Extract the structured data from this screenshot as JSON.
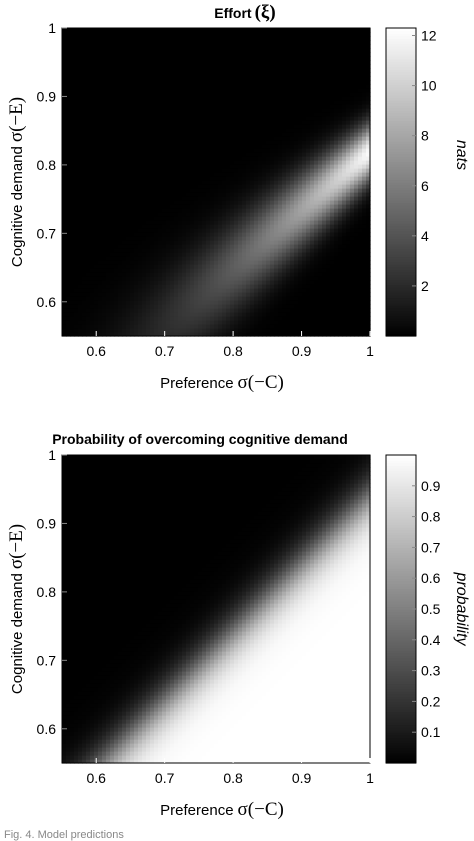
{
  "chart_data": [
    {
      "type": "heatmap",
      "title": "Effort (ξ)",
      "title_parts": {
        "word": "Effort",
        "symbol": "(ξ)"
      },
      "xlabel": {
        "text": "Preference",
        "math": "σ(−C)"
      },
      "ylabel": {
        "text": "Cognitive demand",
        "math": "σ(−E)"
      },
      "xlim": [
        0.55,
        1.0
      ],
      "ylim": [
        0.55,
        1.0
      ],
      "xticks": [
        "0.6",
        "0.7",
        "0.8",
        "0.9",
        "1"
      ],
      "yticks": [
        "0.6",
        "0.7",
        "0.8",
        "0.9",
        "1"
      ],
      "colorbar": {
        "label": "nats",
        "range": [
          0.0,
          12.3
        ],
        "ticks": [
          "2",
          "4",
          "6",
          "8",
          "10",
          "12"
        ],
        "colormap": "gray"
      },
      "pattern": "bright where Cognitive demand is close to Preference and both are high, peak about 12 nats near Preference 1 / Cognitive demand 0.82, black where Cognitive demand is well above Preference"
    },
    {
      "type": "heatmap",
      "title": "Probability of overcoming cognitive demand",
      "xlabel": {
        "text": "Preference",
        "math": "σ(−C)"
      },
      "ylabel": {
        "text": "Cognitive demand",
        "math": "σ(−E)"
      },
      "xlim": [
        0.55,
        1.0
      ],
      "ylim": [
        0.55,
        1.0
      ],
      "xticks": [
        "0.6",
        "0.7",
        "0.8",
        "0.9",
        "1"
      ],
      "yticks": [
        "0.6",
        "0.7",
        "0.8",
        "0.9",
        "1"
      ],
      "colorbar": {
        "label": "probability",
        "range": [
          0.0,
          1.0
        ],
        "ticks": [
          "0.1",
          "0.2",
          "0.3",
          "0.4",
          "0.5",
          "0.6",
          "0.7",
          "0.8",
          "0.9"
        ],
        "colormap": "gray"
      },
      "pattern": "near 1 below the diagonal boundary (Cognitive demand < Preference − 0.06), near 0 above it"
    }
  ],
  "footer_text": "Fig. 4. Model predictions"
}
